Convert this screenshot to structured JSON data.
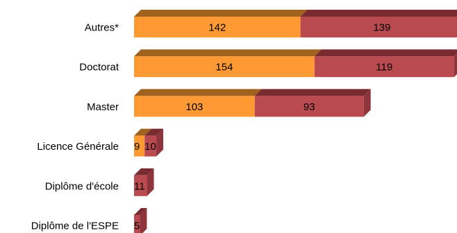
{
  "chart_data": {
    "type": "bar",
    "orientation": "horizontal",
    "stacked": true,
    "three_d": true,
    "grid": false,
    "legend": "none",
    "title": "",
    "xlabel": "",
    "ylabel": "",
    "xlim": [
      0,
      300
    ],
    "categories": [
      "Autres*",
      "Doctorat",
      "Master",
      "Licence Générale",
      "Diplôme d'école",
      "Diplôme de l'ESPE"
    ],
    "series": [
      {
        "values": [
          142,
          154,
          103,
          9,
          0,
          0
        ]
      },
      {
        "values": [
          139,
          119,
          93,
          10,
          11,
          5
        ]
      }
    ],
    "data_labels": [
      [
        "142",
        "139"
      ],
      [
        "154",
        "119"
      ],
      [
        "103",
        "93"
      ],
      [
        "9",
        "10"
      ],
      [
        "",
        "11"
      ],
      [
        "",
        "5"
      ]
    ],
    "colors": {
      "series_front": [
        "#FF9933",
        "#B94A4F"
      ],
      "series_top": [
        "#A0621F",
        "#7A2B30"
      ],
      "series_side": [
        "#C87722",
        "#8E353B"
      ]
    }
  }
}
